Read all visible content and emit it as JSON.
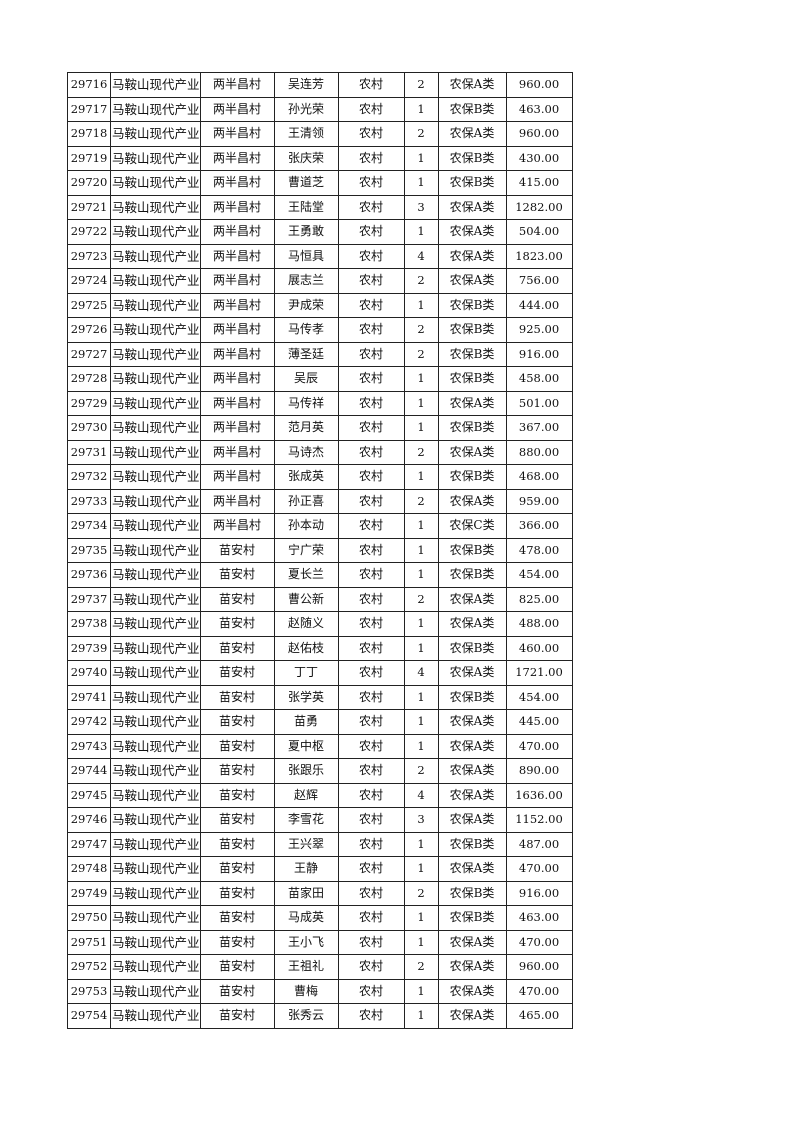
{
  "table": {
    "rows": [
      [
        "29716",
        "马鞍山现代产业",
        "两半昌村",
        "吴连芳",
        "农村",
        "2",
        "农保A类",
        "960.00"
      ],
      [
        "29717",
        "马鞍山现代产业",
        "两半昌村",
        "孙光荣",
        "农村",
        "1",
        "农保B类",
        "463.00"
      ],
      [
        "29718",
        "马鞍山现代产业",
        "两半昌村",
        "王清领",
        "农村",
        "2",
        "农保A类",
        "960.00"
      ],
      [
        "29719",
        "马鞍山现代产业",
        "两半昌村",
        "张庆荣",
        "农村",
        "1",
        "农保B类",
        "430.00"
      ],
      [
        "29720",
        "马鞍山现代产业",
        "两半昌村",
        "曹道芝",
        "农村",
        "1",
        "农保B类",
        "415.00"
      ],
      [
        "29721",
        "马鞍山现代产业",
        "两半昌村",
        "王陆堂",
        "农村",
        "3",
        "农保A类",
        "1282.00"
      ],
      [
        "29722",
        "马鞍山现代产业",
        "两半昌村",
        "王勇敢",
        "农村",
        "1",
        "农保A类",
        "504.00"
      ],
      [
        "29723",
        "马鞍山现代产业",
        "两半昌村",
        "马恒具",
        "农村",
        "4",
        "农保A类",
        "1823.00"
      ],
      [
        "29724",
        "马鞍山现代产业",
        "两半昌村",
        "展志兰",
        "农村",
        "2",
        "农保A类",
        "756.00"
      ],
      [
        "29725",
        "马鞍山现代产业",
        "两半昌村",
        "尹成荣",
        "农村",
        "1",
        "农保B类",
        "444.00"
      ],
      [
        "29726",
        "马鞍山现代产业",
        "两半昌村",
        "马传孝",
        "农村",
        "2",
        "农保B类",
        "925.00"
      ],
      [
        "29727",
        "马鞍山现代产业",
        "两半昌村",
        "薄圣廷",
        "农村",
        "2",
        "农保B类",
        "916.00"
      ],
      [
        "29728",
        "马鞍山现代产业",
        "两半昌村",
        "吴辰",
        "农村",
        "1",
        "农保B类",
        "458.00"
      ],
      [
        "29729",
        "马鞍山现代产业",
        "两半昌村",
        "马传祥",
        "农村",
        "1",
        "农保A类",
        "501.00"
      ],
      [
        "29730",
        "马鞍山现代产业",
        "两半昌村",
        "范月英",
        "农村",
        "1",
        "农保B类",
        "367.00"
      ],
      [
        "29731",
        "马鞍山现代产业",
        "两半昌村",
        "马诗杰",
        "农村",
        "2",
        "农保A类",
        "880.00"
      ],
      [
        "29732",
        "马鞍山现代产业",
        "两半昌村",
        "张成英",
        "农村",
        "1",
        "农保B类",
        "468.00"
      ],
      [
        "29733",
        "马鞍山现代产业",
        "两半昌村",
        "孙正喜",
        "农村",
        "2",
        "农保A类",
        "959.00"
      ],
      [
        "29734",
        "马鞍山现代产业",
        "两半昌村",
        "孙本动",
        "农村",
        "1",
        "农保C类",
        "366.00"
      ],
      [
        "29735",
        "马鞍山现代产业",
        "苗安村",
        "宁广荣",
        "农村",
        "1",
        "农保B类",
        "478.00"
      ],
      [
        "29736",
        "马鞍山现代产业",
        "苗安村",
        "夏长兰",
        "农村",
        "1",
        "农保B类",
        "454.00"
      ],
      [
        "29737",
        "马鞍山现代产业",
        "苗安村",
        "曹公新",
        "农村",
        "2",
        "农保A类",
        "825.00"
      ],
      [
        "29738",
        "马鞍山现代产业",
        "苗安村",
        "赵随义",
        "农村",
        "1",
        "农保A类",
        "488.00"
      ],
      [
        "29739",
        "马鞍山现代产业",
        "苗安村",
        "赵佑枝",
        "农村",
        "1",
        "农保B类",
        "460.00"
      ],
      [
        "29740",
        "马鞍山现代产业",
        "苗安村",
        "丁丁",
        "农村",
        "4",
        "农保A类",
        "1721.00"
      ],
      [
        "29741",
        "马鞍山现代产业",
        "苗安村",
        "张学英",
        "农村",
        "1",
        "农保B类",
        "454.00"
      ],
      [
        "29742",
        "马鞍山现代产业",
        "苗安村",
        "苗勇",
        "农村",
        "1",
        "农保A类",
        "445.00"
      ],
      [
        "29743",
        "马鞍山现代产业",
        "苗安村",
        "夏中枢",
        "农村",
        "1",
        "农保A类",
        "470.00"
      ],
      [
        "29744",
        "马鞍山现代产业",
        "苗安村",
        "张跟乐",
        "农村",
        "2",
        "农保A类",
        "890.00"
      ],
      [
        "29745",
        "马鞍山现代产业",
        "苗安村",
        "赵辉",
        "农村",
        "4",
        "农保A类",
        "1636.00"
      ],
      [
        "29746",
        "马鞍山现代产业",
        "苗安村",
        "李雪花",
        "农村",
        "3",
        "农保A类",
        "1152.00"
      ],
      [
        "29747",
        "马鞍山现代产业",
        "苗安村",
        "王兴翠",
        "农村",
        "1",
        "农保B类",
        "487.00"
      ],
      [
        "29748",
        "马鞍山现代产业",
        "苗安村",
        "王静",
        "农村",
        "1",
        "农保A类",
        "470.00"
      ],
      [
        "29749",
        "马鞍山现代产业",
        "苗安村",
        "苗家田",
        "农村",
        "2",
        "农保B类",
        "916.00"
      ],
      [
        "29750",
        "马鞍山现代产业",
        "苗安村",
        "马成英",
        "农村",
        "1",
        "农保B类",
        "463.00"
      ],
      [
        "29751",
        "马鞍山现代产业",
        "苗安村",
        "王小飞",
        "农村",
        "1",
        "农保A类",
        "470.00"
      ],
      [
        "29752",
        "马鞍山现代产业",
        "苗安村",
        "王祖礼",
        "农村",
        "2",
        "农保A类",
        "960.00"
      ],
      [
        "29753",
        "马鞍山现代产业",
        "苗安村",
        "曹梅",
        "农村",
        "1",
        "农保A类",
        "470.00"
      ],
      [
        "29754",
        "马鞍山现代产业",
        "苗安村",
        "张秀云",
        "农村",
        "1",
        "农保A类",
        "465.00"
      ]
    ]
  }
}
